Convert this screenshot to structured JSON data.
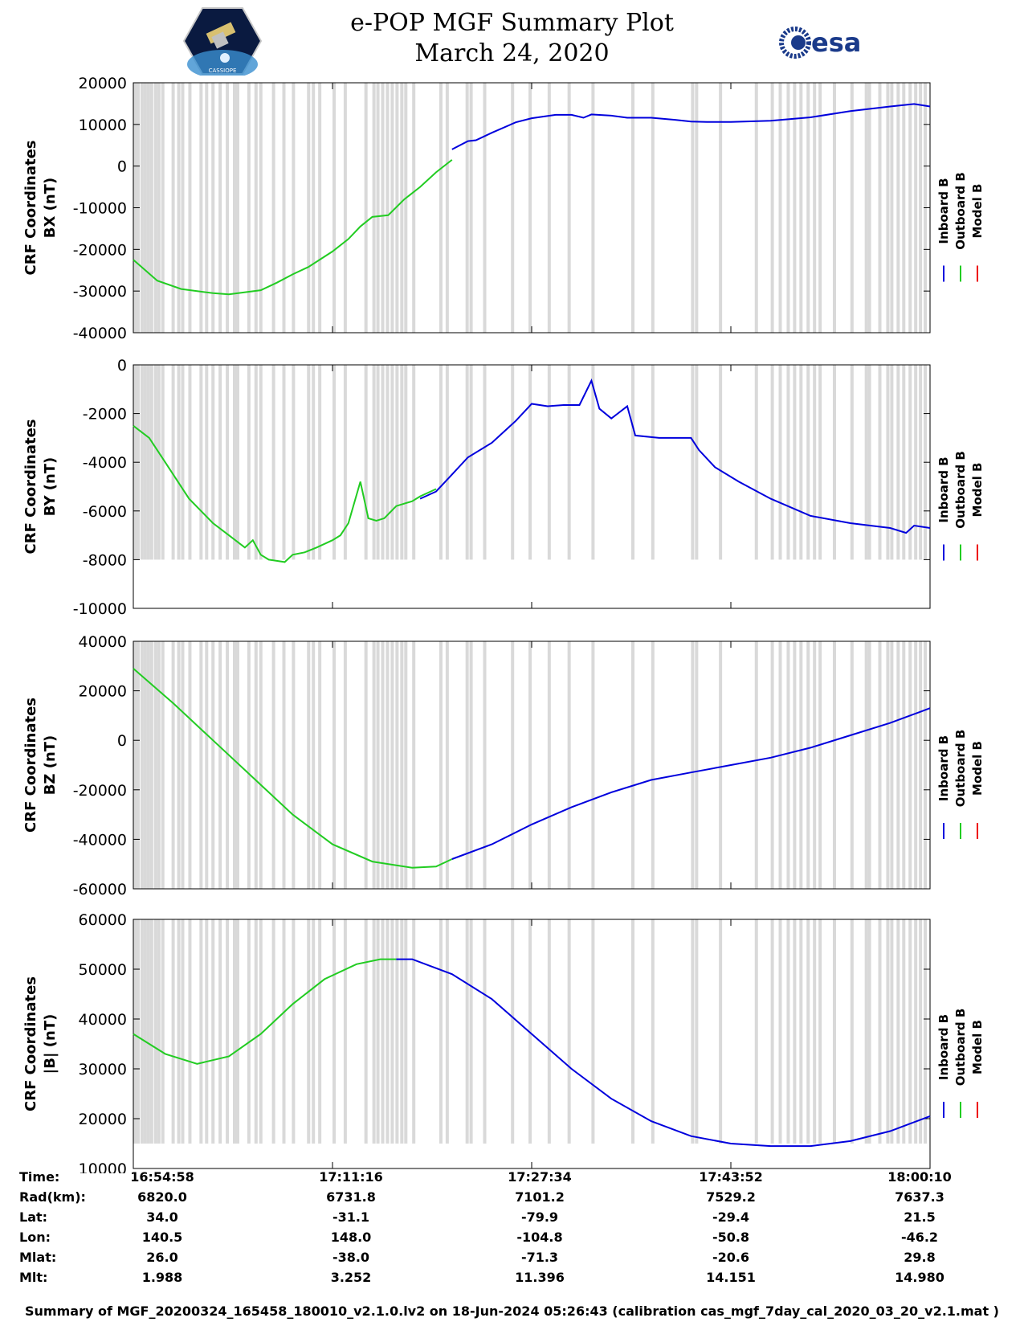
{
  "header": {
    "title": "e-POP MGF Summary Plot",
    "date": "March 24, 2020",
    "logo_left": "CASSIOPE",
    "logo_right": "esa"
  },
  "legend": {
    "entries": [
      "Inboard B",
      "Outboard B",
      "Model B"
    ],
    "colors": [
      "#0000dd",
      "#22cc22",
      "#ee0000"
    ]
  },
  "chart_data": [
    {
      "type": "line",
      "ylabel": [
        "CRF Coordinates",
        "BX (nT)"
      ],
      "ylim": [
        -40000,
        20000
      ],
      "yticks": [
        20000,
        10000,
        0,
        -10000,
        -20000,
        -30000,
        -40000
      ],
      "series": [
        {
          "name": "Outboard B",
          "color": "#22cc22",
          "x": [
            0,
            0.03,
            0.06,
            0.1,
            0.12,
            0.16,
            0.18,
            0.2,
            0.22,
            0.25,
            0.27,
            0.285,
            0.3,
            0.32,
            0.34,
            0.36,
            0.38,
            0.4
          ],
          "y": [
            -22500,
            -27500,
            -29500,
            -30500,
            -30800,
            -29800,
            -28000,
            -26000,
            -24200,
            -20500,
            -17500,
            -14500,
            -12200,
            -11800,
            -8000,
            -5000,
            -1500,
            1500
          ]
        },
        {
          "name": "Inboard B",
          "color": "#0000dd",
          "x": [
            0.4,
            0.42,
            0.43,
            0.45,
            0.48,
            0.5,
            0.53,
            0.55,
            0.565,
            0.575,
            0.6,
            0.62,
            0.65,
            0.68,
            0.7,
            0.72,
            0.75,
            0.8,
            0.85,
            0.9,
            0.95,
            0.98,
            1.0
          ],
          "y": [
            4000,
            6000,
            6200,
            8000,
            10500,
            11500,
            12300,
            12300,
            11600,
            12400,
            12100,
            11600,
            11600,
            11100,
            10700,
            10600,
            10600,
            10900,
            11700,
            13200,
            14300,
            14900,
            14300
          ]
        }
      ]
    },
    {
      "type": "line",
      "ylabel": [
        "CRF Coordinates",
        "BY (nT)"
      ],
      "ylim": [
        -10000,
        0
      ],
      "yticks": [
        0,
        -2000,
        -4000,
        -6000,
        -8000,
        -10000
      ],
      "series": [
        {
          "name": "Outboard B",
          "color": "#22cc22",
          "x": [
            0,
            0.02,
            0.04,
            0.07,
            0.1,
            0.12,
            0.14,
            0.15,
            0.16,
            0.17,
            0.18,
            0.19,
            0.2,
            0.215,
            0.23,
            0.25,
            0.26,
            0.27,
            0.285,
            0.295,
            0.305,
            0.315,
            0.33,
            0.35,
            0.36,
            0.38
          ],
          "y": [
            -2500,
            -3000,
            -4000,
            -5500,
            -6500,
            -7000,
            -7500,
            -7200,
            -7800,
            -8000,
            -8050,
            -8100,
            -7800,
            -7700,
            -7500,
            -7200,
            -7000,
            -6500,
            -4800,
            -6300,
            -6400,
            -6300,
            -5800,
            -5600,
            -5400,
            -5100
          ]
        },
        {
          "name": "Inboard B",
          "color": "#0000dd",
          "x": [
            0.36,
            0.38,
            0.4,
            0.42,
            0.45,
            0.48,
            0.5,
            0.52,
            0.54,
            0.56,
            0.575,
            0.585,
            0.6,
            0.62,
            0.63,
            0.66,
            0.7,
            0.71,
            0.73,
            0.76,
            0.8,
            0.85,
            0.9,
            0.95,
            0.97,
            0.98,
            1.0
          ],
          "y": [
            -5500,
            -5200,
            -4500,
            -3800,
            -3200,
            -2300,
            -1600,
            -1700,
            -1650,
            -1650,
            -650,
            -1800,
            -2200,
            -1700,
            -2900,
            -3000,
            -3000,
            -3500,
            -4200,
            -4800,
            -5500,
            -6200,
            -6500,
            -6700,
            -6900,
            -6600,
            -6700
          ]
        }
      ]
    },
    {
      "type": "line",
      "ylabel": [
        "CRF Coordinates",
        "BZ (nT)"
      ],
      "ylim": [
        -60000,
        40000
      ],
      "yticks": [
        40000,
        20000,
        0,
        -20000,
        -40000,
        -60000
      ],
      "series": [
        {
          "name": "Outboard B",
          "color": "#22cc22",
          "x": [
            0,
            0.05,
            0.1,
            0.15,
            0.2,
            0.25,
            0.3,
            0.35,
            0.38,
            0.4
          ],
          "y": [
            29000,
            15000,
            0,
            -15000,
            -30000,
            -42000,
            -49000,
            -51500,
            -51000,
            -48000
          ]
        },
        {
          "name": "Inboard B",
          "color": "#0000dd",
          "x": [
            0.4,
            0.45,
            0.5,
            0.55,
            0.6,
            0.65,
            0.7,
            0.75,
            0.8,
            0.85,
            0.9,
            0.95,
            1.0
          ],
          "y": [
            -48000,
            -42000,
            -34000,
            -27000,
            -21000,
            -16000,
            -13000,
            -10000,
            -7000,
            -3000,
            2000,
            7000,
            13000
          ]
        }
      ]
    },
    {
      "type": "line",
      "ylabel": [
        "CRF Coordinates",
        "|B| (nT)"
      ],
      "ylim": [
        10000,
        60000
      ],
      "yticks": [
        60000,
        50000,
        40000,
        30000,
        20000,
        10000
      ],
      "series": [
        {
          "name": "Outboard B",
          "color": "#22cc22",
          "x": [
            0,
            0.04,
            0.08,
            0.12,
            0.16,
            0.2,
            0.24,
            0.28,
            0.31,
            0.33
          ],
          "y": [
            37000,
            33000,
            31000,
            32500,
            37000,
            43000,
            48000,
            51000,
            52000,
            52000
          ]
        },
        {
          "name": "Inboard B",
          "color": "#0000dd",
          "x": [
            0.33,
            0.35,
            0.4,
            0.45,
            0.5,
            0.55,
            0.6,
            0.65,
            0.7,
            0.75,
            0.8,
            0.85,
            0.9,
            0.95,
            1.0
          ],
          "y": [
            52000,
            52000,
            49000,
            44000,
            37000,
            30000,
            24000,
            19500,
            16500,
            15000,
            14500,
            14500,
            15500,
            17500,
            20500
          ]
        }
      ]
    }
  ],
  "coverage_gaps": [
    0.0,
    0.004,
    0.009,
    0.013,
    0.017,
    0.021,
    0.026,
    0.03,
    0.035,
    0.048,
    0.055,
    0.06,
    0.069,
    0.083,
    0.09,
    0.098,
    0.107,
    0.116,
    0.125,
    0.129,
    0.143,
    0.152,
    0.158,
    0.174,
    0.187,
    0.199,
    0.218,
    0.224,
    0.232,
    0.25,
    0.264,
    0.29,
    0.3,
    0.305,
    0.311,
    0.317,
    0.323,
    0.329,
    0.335,
    0.34,
    0.35,
    0.384,
    0.392,
    0.417,
    0.422,
    0.439,
    0.474,
    0.496,
    0.52,
    0.545,
    0.575,
    0.625,
    0.65,
    0.7,
    0.705,
    0.735,
    0.78,
    0.8,
    0.81,
    0.82,
    0.828,
    0.836,
    0.845,
    0.853,
    0.86,
    0.878,
    0.9,
    0.918,
    0.922,
    0.935,
    0.945,
    0.95,
    0.958,
    0.965,
    0.973,
    0.98,
    0.986,
    0.992
  ],
  "time_axis": {
    "labels": {
      "Time:": [
        "16:54:58",
        "17:11:16",
        "17:27:34",
        "17:43:52",
        "18:00:10"
      ],
      "Rad(km):": [
        "6820.0",
        "6731.8",
        "7101.2",
        "7529.2",
        "7637.3"
      ],
      "Lat:": [
        "34.0",
        "-31.1",
        "-79.9",
        "-29.4",
        "21.5"
      ],
      "Lon:": [
        "140.5",
        "148.0",
        "-104.8",
        "-50.8",
        "-46.2"
      ],
      "Mlat:": [
        "26.0",
        "-38.0",
        "-71.3",
        "-20.6",
        "29.8"
      ],
      "Mlt:": [
        "1.988",
        "3.252",
        "11.396",
        "14.151",
        "14.980"
      ]
    },
    "row_order": [
      "Time:",
      "Rad(km):",
      "Lat:",
      "Lon:",
      "Mlat:",
      "Mlt:"
    ]
  },
  "footer": "Summary of MGF_20200324_165458_180010_v2.1.0.lv2 on 18-Jun-2024 05:26:43 (calibration cas_mgf_7day_cal_2020_03_20_v2.1.mat )"
}
